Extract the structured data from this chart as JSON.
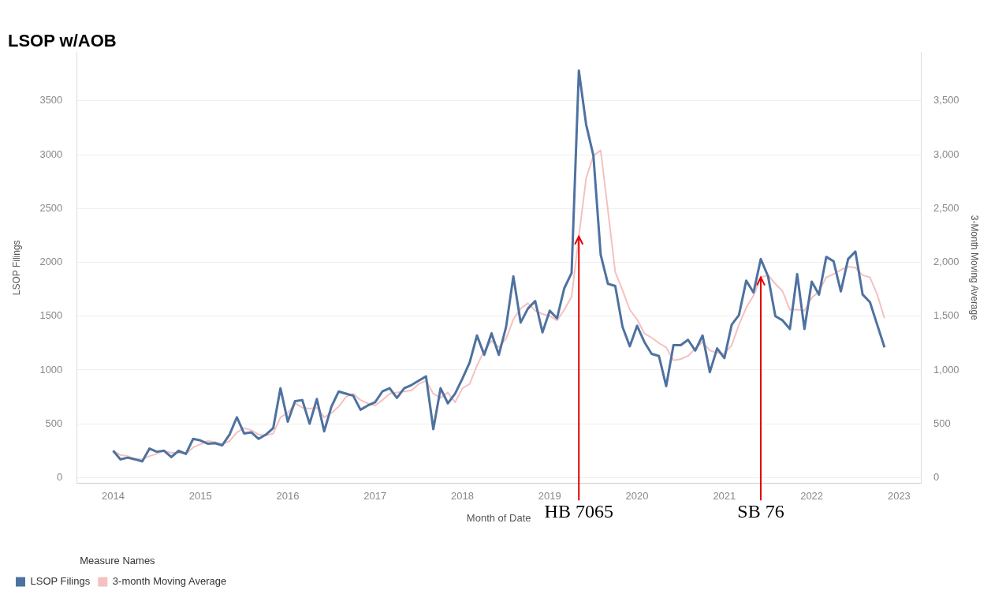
{
  "chart_data": {
    "type": "line",
    "title": "LSOP w/AOB",
    "xlabel": "Month of Date",
    "ylabel": "LSOP Filings",
    "y2label": "3-Month Moving Average",
    "legend_title": "Measure Names",
    "x": [
      "2014-01",
      "2014-02",
      "2014-03",
      "2014-04",
      "2014-05",
      "2014-06",
      "2014-07",
      "2014-08",
      "2014-09",
      "2014-10",
      "2014-11",
      "2014-12",
      "2015-01",
      "2015-02",
      "2015-03",
      "2015-04",
      "2015-05",
      "2015-06",
      "2015-07",
      "2015-08",
      "2015-09",
      "2015-10",
      "2015-11",
      "2015-12",
      "2016-01",
      "2016-02",
      "2016-03",
      "2016-04",
      "2016-05",
      "2016-06",
      "2016-07",
      "2016-08",
      "2016-09",
      "2016-10",
      "2016-11",
      "2016-12",
      "2017-01",
      "2017-02",
      "2017-03",
      "2017-04",
      "2017-05",
      "2017-06",
      "2017-07",
      "2017-08",
      "2017-09",
      "2017-10",
      "2017-11",
      "2017-12",
      "2018-01",
      "2018-02",
      "2018-03",
      "2018-04",
      "2018-05",
      "2018-06",
      "2018-07",
      "2018-08",
      "2018-09",
      "2018-10",
      "2018-11",
      "2018-12",
      "2019-01",
      "2019-02",
      "2019-03",
      "2019-04",
      "2019-05",
      "2019-06",
      "2019-07",
      "2019-08",
      "2019-09",
      "2019-10",
      "2019-11",
      "2019-12",
      "2020-01",
      "2020-02",
      "2020-03",
      "2020-04",
      "2020-05",
      "2020-06",
      "2020-07",
      "2020-08",
      "2020-09",
      "2020-10",
      "2020-11",
      "2020-12",
      "2021-01",
      "2021-02",
      "2021-03",
      "2021-04",
      "2021-05",
      "2021-06",
      "2021-07",
      "2021-08",
      "2021-09",
      "2021-10",
      "2021-11",
      "2021-12",
      "2022-01",
      "2022-02",
      "2022-03",
      "2022-04",
      "2022-05",
      "2022-06",
      "2022-07",
      "2022-08",
      "2022-09",
      "2022-10",
      "2022-11"
    ],
    "series": [
      {
        "name": "3-month Moving Average",
        "color": "#f5c0c0",
        "axis": "y2",
        "values": [
          250,
          210,
          200,
          175,
          170,
          200,
          220,
          250,
          230,
          230,
          220,
          280,
          310,
          340,
          330,
          310,
          340,
          420,
          460,
          440,
          400,
          390,
          410,
          560,
          600,
          690,
          650,
          640,
          650,
          560,
          600,
          660,
          750,
          780,
          720,
          690,
          670,
          720,
          780,
          790,
          800,
          810,
          870,
          900,
          780,
          740,
          790,
          700,
          830,
          870,
          1040,
          1180,
          1270,
          1210,
          1290,
          1470,
          1570,
          1620,
          1550,
          1520,
          1500,
          1460,
          1560,
          1680,
          2240,
          2780,
          2990,
          3040,
          2480,
          1910,
          1740,
          1560,
          1470,
          1340,
          1300,
          1250,
          1210,
          1090,
          1100,
          1130,
          1200,
          1260,
          1180,
          1160,
          1150,
          1230,
          1420,
          1580,
          1690,
          1860,
          1880,
          1800,
          1730,
          1560,
          1560,
          1550,
          1670,
          1730,
          1860,
          1890,
          1930,
          1960,
          1950,
          1880,
          1860,
          1700,
          1480
        ]
      },
      {
        "name": "LSOP Filings",
        "color": "#4e72a0",
        "values": [
          250,
          170,
          185,
          170,
          150,
          270,
          240,
          250,
          190,
          250,
          220,
          360,
          345,
          315,
          320,
          300,
          400,
          560,
          410,
          420,
          360,
          400,
          460,
          830,
          520,
          710,
          720,
          500,
          730,
          430,
          660,
          800,
          780,
          760,
          630,
          670,
          700,
          800,
          830,
          740,
          830,
          860,
          900,
          940,
          450,
          830,
          690,
          780,
          920,
          1070,
          1320,
          1140,
          1340,
          1140,
          1400,
          1870,
          1440,
          1570,
          1640,
          1350,
          1550,
          1480,
          1760,
          1900,
          3780,
          3280,
          2990,
          2070,
          1800,
          1780,
          1400,
          1220,
          1410,
          1260,
          1150,
          1130,
          850,
          1230,
          1230,
          1280,
          1180,
          1320,
          980,
          1200,
          1110,
          1420,
          1510,
          1830,
          1720,
          2030,
          1870,
          1500,
          1460,
          1380,
          1890,
          1380,
          1820,
          1700,
          2050,
          2010,
          1730,
          2030,
          2100,
          1700,
          1630,
          1420,
          1210
        ]
      }
    ],
    "xlim": [
      "2013-08",
      "2023-04"
    ],
    "xticks": [
      "2014",
      "2015",
      "2016",
      "2017",
      "2018",
      "2019",
      "2020",
      "2021",
      "2022",
      "2023"
    ],
    "ylim": [
      -50,
      3950
    ],
    "yticks": [
      0,
      500,
      1000,
      1500,
      2000,
      2500,
      3000,
      3500
    ],
    "y2lim": [
      -50,
      3950
    ],
    "y2ticks": [
      {
        "value": 0,
        "label": "0"
      },
      {
        "value": 500,
        "label": "500"
      },
      {
        "value": 1000,
        "label": "1,000"
      },
      {
        "value": 1500,
        "label": "1,500"
      },
      {
        "value": 2000,
        "label": "2,000"
      },
      {
        "value": 2500,
        "label": "2,500"
      },
      {
        "value": 3000,
        "label": "3,000"
      },
      {
        "value": 3500,
        "label": "3,500"
      }
    ],
    "annotations": [
      {
        "text": "HB 7065",
        "x": "2019-05",
        "y": 2240
      },
      {
        "text": "SB 76",
        "x": "2021-06",
        "y": 1860
      }
    ],
    "grid": "y",
    "legend": "bottom left",
    "marker": "none",
    "line_style": "solid"
  }
}
